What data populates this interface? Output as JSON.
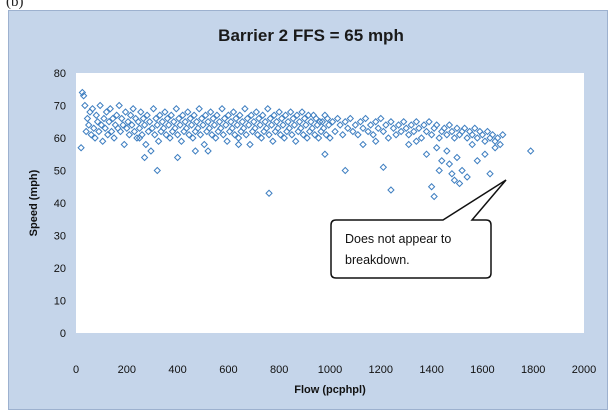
{
  "panel_label": "(b)",
  "chart_data": {
    "type": "scatter",
    "title": "Barrier 2 FFS = 65 mph",
    "xlabel": "Flow (pcphpl)",
    "ylabel": "Speed (mph)",
    "xlim": [
      0,
      2000
    ],
    "ylim": [
      0,
      80
    ],
    "xticks": [
      0,
      200,
      400,
      600,
      800,
      1000,
      1200,
      1400,
      1600,
      1800,
      2000
    ],
    "yticks": [
      0,
      10,
      20,
      30,
      40,
      50,
      60,
      70,
      80
    ],
    "grid": false,
    "legend": "none",
    "marker": "diamond-open",
    "colors": {
      "marker": "#3f7fc1",
      "plot_bg": "#ffffff",
      "chart_bg": "#c5d5ea"
    },
    "annotation": {
      "text_lines": [
        "Does not appear to",
        "breakdown."
      ],
      "points_to": [
        1680,
        55
      ]
    },
    "series": [
      {
        "points": [
          [
            20,
            57
          ],
          [
            25,
            74
          ],
          [
            30,
            73
          ],
          [
            35,
            70
          ],
          [
            40,
            62
          ],
          [
            45,
            66
          ],
          [
            50,
            64
          ],
          [
            55,
            68
          ],
          [
            60,
            61
          ],
          [
            65,
            69
          ],
          [
            70,
            63
          ],
          [
            75,
            60
          ],
          [
            80,
            67
          ],
          [
            85,
            65
          ],
          [
            90,
            62
          ],
          [
            95,
            70
          ],
          [
            100,
            64
          ],
          [
            105,
            59
          ],
          [
            110,
            66
          ],
          [
            115,
            63
          ],
          [
            120,
            68
          ],
          [
            125,
            61
          ],
          [
            130,
            65
          ],
          [
            135,
            69
          ],
          [
            140,
            62
          ],
          [
            145,
            66
          ],
          [
            150,
            60
          ],
          [
            155,
            64
          ],
          [
            160,
            67
          ],
          [
            165,
            63
          ],
          [
            170,
            70
          ],
          [
            175,
            62
          ],
          [
            180,
            66
          ],
          [
            185,
            64
          ],
          [
            190,
            58
          ],
          [
            195,
            68
          ],
          [
            200,
            63
          ],
          [
            205,
            65
          ],
          [
            210,
            61
          ],
          [
            215,
            67
          ],
          [
            220,
            64
          ],
          [
            225,
            69
          ],
          [
            230,
            62
          ],
          [
            235,
            66
          ],
          [
            240,
            60
          ],
          [
            245,
            65
          ],
          [
            250,
            63
          ],
          [
            255,
            68
          ],
          [
            260,
            61
          ],
          [
            265,
            66
          ],
          [
            270,
            64
          ],
          [
            275,
            58
          ],
          [
            280,
            67
          ],
          [
            285,
            62
          ],
          [
            290,
            65
          ],
          [
            295,
            56
          ],
          [
            300,
            63
          ],
          [
            305,
            69
          ],
          [
            310,
            61
          ],
          [
            315,
            66
          ],
          [
            320,
            64
          ],
          [
            325,
            59
          ],
          [
            330,
            67
          ],
          [
            335,
            62
          ],
          [
            340,
            65
          ],
          [
            345,
            63
          ],
          [
            350,
            68
          ],
          [
            355,
            61
          ],
          [
            360,
            66
          ],
          [
            365,
            64
          ],
          [
            370,
            60
          ],
          [
            375,
            67
          ],
          [
            380,
            62
          ],
          [
            385,
            65
          ],
          [
            390,
            63
          ],
          [
            395,
            69
          ],
          [
            400,
            61
          ],
          [
            405,
            66
          ],
          [
            410,
            64
          ],
          [
            415,
            59
          ],
          [
            420,
            67
          ],
          [
            425,
            62
          ],
          [
            430,
            65
          ],
          [
            435,
            63
          ],
          [
            440,
            68
          ],
          [
            445,
            61
          ],
          [
            450,
            66
          ],
          [
            455,
            64
          ],
          [
            460,
            60
          ],
          [
            465,
            67
          ],
          [
            470,
            62
          ],
          [
            475,
            65
          ],
          [
            480,
            63
          ],
          [
            485,
            69
          ],
          [
            490,
            61
          ],
          [
            495,
            66
          ],
          [
            500,
            64
          ],
          [
            505,
            58
          ],
          [
            510,
            67
          ],
          [
            515,
            62
          ],
          [
            520,
            65
          ],
          [
            525,
            63
          ],
          [
            530,
            68
          ],
          [
            535,
            61
          ],
          [
            540,
            66
          ],
          [
            545,
            64
          ],
          [
            550,
            60
          ],
          [
            555,
            67
          ],
          [
            560,
            62
          ],
          [
            565,
            65
          ],
          [
            570,
            63
          ],
          [
            575,
            69
          ],
          [
            580,
            61
          ],
          [
            585,
            66
          ],
          [
            590,
            64
          ],
          [
            595,
            59
          ],
          [
            600,
            67
          ],
          [
            605,
            62
          ],
          [
            610,
            65
          ],
          [
            615,
            63
          ],
          [
            620,
            68
          ],
          [
            625,
            61
          ],
          [
            630,
            66
          ],
          [
            635,
            64
          ],
          [
            640,
            60
          ],
          [
            645,
            67
          ],
          [
            650,
            62
          ],
          [
            655,
            65
          ],
          [
            660,
            63
          ],
          [
            665,
            69
          ],
          [
            670,
            61
          ],
          [
            675,
            66
          ],
          [
            680,
            64
          ],
          [
            685,
            58
          ],
          [
            690,
            67
          ],
          [
            695,
            62
          ],
          [
            700,
            65
          ],
          [
            705,
            63
          ],
          [
            710,
            68
          ],
          [
            715,
            61
          ],
          [
            720,
            66
          ],
          [
            725,
            64
          ],
          [
            730,
            60
          ],
          [
            735,
            67
          ],
          [
            740,
            62
          ],
          [
            745,
            65
          ],
          [
            750,
            63
          ],
          [
            755,
            69
          ],
          [
            760,
            61
          ],
          [
            765,
            66
          ],
          [
            770,
            64
          ],
          [
            775,
            59
          ],
          [
            780,
            67
          ],
          [
            785,
            62
          ],
          [
            790,
            65
          ],
          [
            795,
            63
          ],
          [
            800,
            68
          ],
          [
            805,
            61
          ],
          [
            810,
            66
          ],
          [
            815,
            64
          ],
          [
            820,
            60
          ],
          [
            825,
            67
          ],
          [
            830,
            62
          ],
          [
            835,
            65
          ],
          [
            840,
            63
          ],
          [
            845,
            68
          ],
          [
            850,
            61
          ],
          [
            855,
            66
          ],
          [
            860,
            64
          ],
          [
            865,
            59
          ],
          [
            870,
            67
          ],
          [
            875,
            62
          ],
          [
            880,
            65
          ],
          [
            885,
            63
          ],
          [
            890,
            68
          ],
          [
            895,
            61
          ],
          [
            900,
            66
          ],
          [
            905,
            64
          ],
          [
            910,
            60
          ],
          [
            915,
            67
          ],
          [
            920,
            62
          ],
          [
            925,
            65
          ],
          [
            930,
            63
          ],
          [
            935,
            67
          ],
          [
            940,
            61
          ],
          [
            945,
            66
          ],
          [
            950,
            64
          ],
          [
            955,
            60
          ],
          [
            960,
            65
          ],
          [
            965,
            62
          ],
          [
            970,
            65
          ],
          [
            975,
            63
          ],
          [
            980,
            67
          ],
          [
            985,
            61
          ],
          [
            990,
            66
          ],
          [
            995,
            64
          ],
          [
            1000,
            60
          ],
          [
            1010,
            65
          ],
          [
            1020,
            62
          ],
          [
            1030,
            66
          ],
          [
            1040,
            64
          ],
          [
            1050,
            61
          ],
          [
            1060,
            65
          ],
          [
            1070,
            63
          ],
          [
            1080,
            66
          ],
          [
            1090,
            62
          ],
          [
            1100,
            64
          ],
          [
            1110,
            61
          ],
          [
            1120,
            65
          ],
          [
            1130,
            63
          ],
          [
            1140,
            66
          ],
          [
            1150,
            62
          ],
          [
            1160,
            64
          ],
          [
            1170,
            61
          ],
          [
            1180,
            65
          ],
          [
            1190,
            63
          ],
          [
            1200,
            66
          ],
          [
            1210,
            62
          ],
          [
            1220,
            64
          ],
          [
            1230,
            60
          ],
          [
            1240,
            65
          ],
          [
            1250,
            63
          ],
          [
            1260,
            61
          ],
          [
            1270,
            64
          ],
          [
            1280,
            62
          ],
          [
            1290,
            65
          ],
          [
            1300,
            63
          ],
          [
            1310,
            61
          ],
          [
            1320,
            64
          ],
          [
            1330,
            62
          ],
          [
            1340,
            65
          ],
          [
            1350,
            63
          ],
          [
            1360,
            60
          ],
          [
            1370,
            64
          ],
          [
            1380,
            62
          ],
          [
            1390,
            65
          ],
          [
            1400,
            61
          ],
          [
            1410,
            63
          ],
          [
            1420,
            64
          ],
          [
            1430,
            60
          ],
          [
            1440,
            62
          ],
          [
            1450,
            63
          ],
          [
            1460,
            61
          ],
          [
            1470,
            64
          ],
          [
            1480,
            62
          ],
          [
            1490,
            60
          ],
          [
            1500,
            63
          ],
          [
            1510,
            61
          ],
          [
            1520,
            62
          ],
          [
            1530,
            63
          ],
          [
            1540,
            60
          ],
          [
            1550,
            62
          ],
          [
            1560,
            61
          ],
          [
            1570,
            63
          ],
          [
            1580,
            60
          ],
          [
            1590,
            62
          ],
          [
            1600,
            61
          ],
          [
            1610,
            59
          ],
          [
            1620,
            62
          ],
          [
            1630,
            60
          ],
          [
            1640,
            61
          ],
          [
            1650,
            59
          ],
          [
            1660,
            60
          ],
          [
            1670,
            58
          ],
          [
            1680,
            61
          ],
          [
            250,
            60
          ],
          [
            270,
            54
          ],
          [
            320,
            50
          ],
          [
            400,
            54
          ],
          [
            470,
            56
          ],
          [
            520,
            56
          ],
          [
            640,
            58
          ],
          [
            760,
            43
          ],
          [
            980,
            55
          ],
          [
            1060,
            50
          ],
          [
            1130,
            58
          ],
          [
            1180,
            59
          ],
          [
            1210,
            51
          ],
          [
            1240,
            44
          ],
          [
            1310,
            58
          ],
          [
            1340,
            59
          ],
          [
            1380,
            55
          ],
          [
            1400,
            45
          ],
          [
            1410,
            42
          ],
          [
            1420,
            57
          ],
          [
            1430,
            50
          ],
          [
            1440,
            53
          ],
          [
            1460,
            56
          ],
          [
            1470,
            52
          ],
          [
            1480,
            49
          ],
          [
            1490,
            47
          ],
          [
            1500,
            54
          ],
          [
            1510,
            46
          ],
          [
            1520,
            50
          ],
          [
            1540,
            48
          ],
          [
            1560,
            58
          ],
          [
            1580,
            53
          ],
          [
            1610,
            55
          ],
          [
            1630,
            49
          ],
          [
            1650,
            57
          ],
          [
            1790,
            56
          ]
        ]
      }
    ]
  }
}
